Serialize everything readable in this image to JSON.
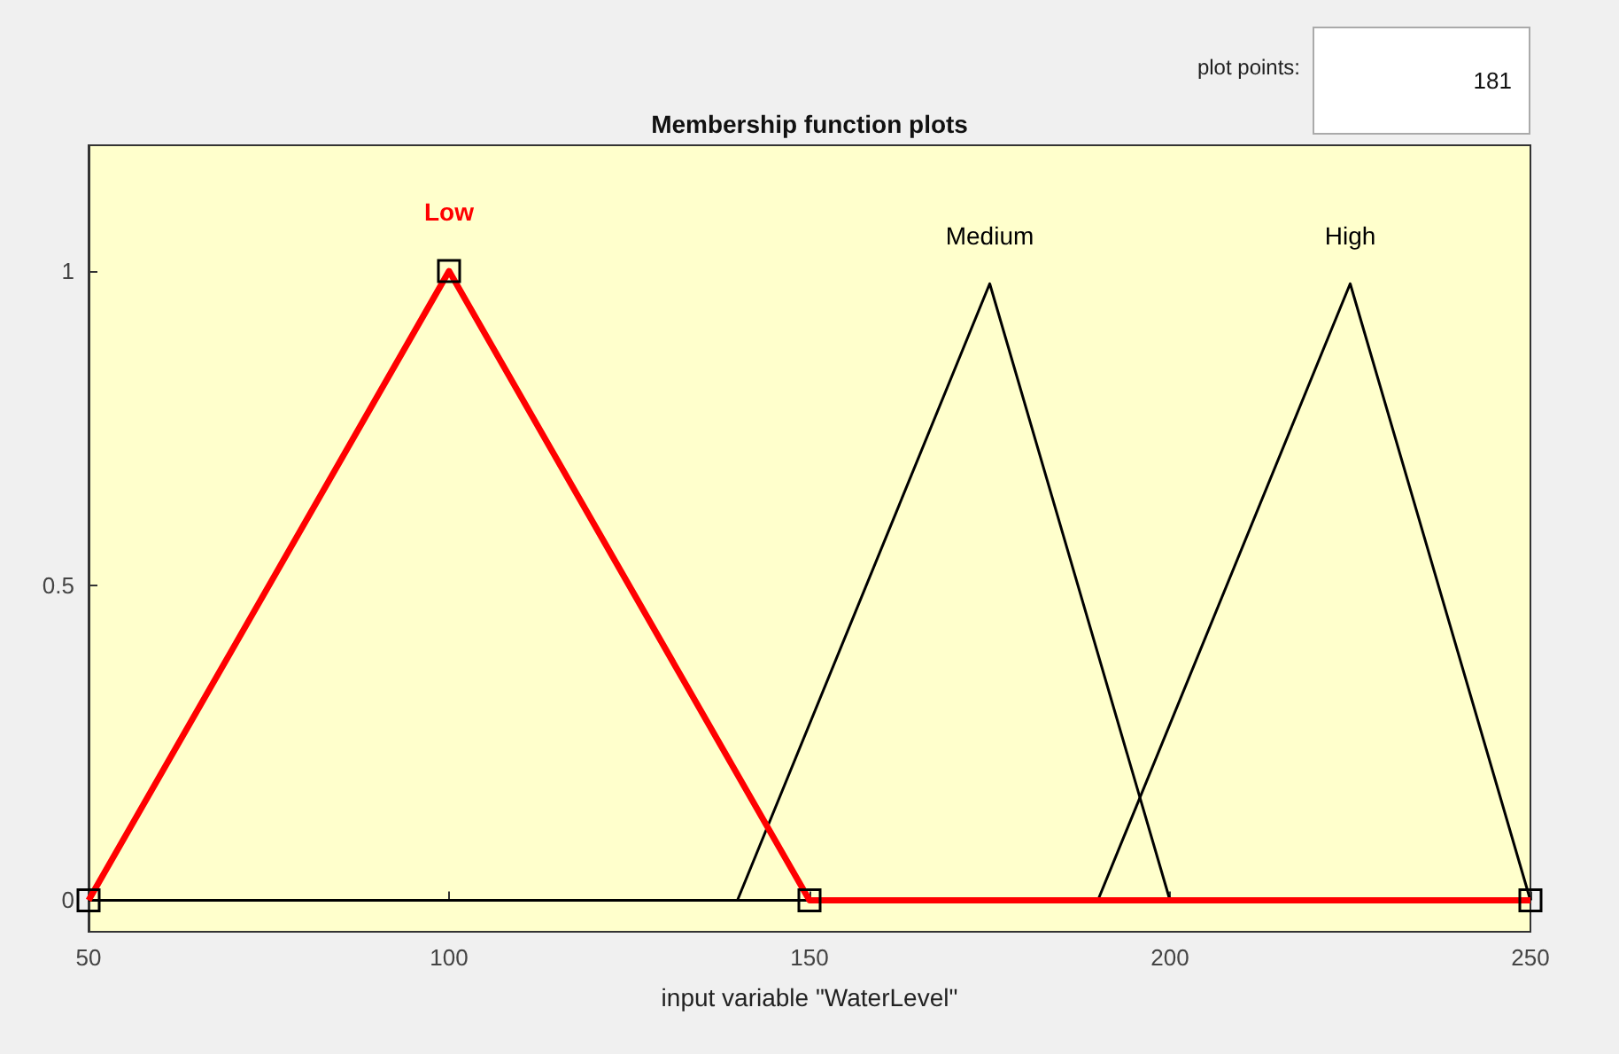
{
  "chart_data": {
    "type": "line",
    "title": "Membership function plots",
    "xlabel": "input variable \"WaterLevel\"",
    "xlim": [
      50,
      250
    ],
    "xticks": [
      50,
      100,
      150,
      200,
      250
    ],
    "ylim": [
      -0.05,
      1.2
    ],
    "yticks": [
      0,
      0.5,
      1
    ],
    "grid": false,
    "legend": false,
    "annotations": [
      "plot points:",
      "181"
    ],
    "series": [
      {
        "name": "Low",
        "color": "#ff0000",
        "x": [
          50,
          100,
          150,
          250
        ],
        "values": [
          0,
          1,
          0,
          0
        ],
        "marker": "square"
      },
      {
        "name": "Medium",
        "color": "#000000",
        "x": [
          50,
          140,
          175,
          200,
          250
        ],
        "values": [
          0,
          0,
          0.98,
          0,
          0
        ],
        "marker": "none"
      },
      {
        "name": "High",
        "color": "#000000",
        "x": [
          50,
          190,
          225,
          250
        ],
        "values": [
          0,
          0,
          0.98,
          0
        ],
        "marker": "none"
      }
    ]
  }
}
